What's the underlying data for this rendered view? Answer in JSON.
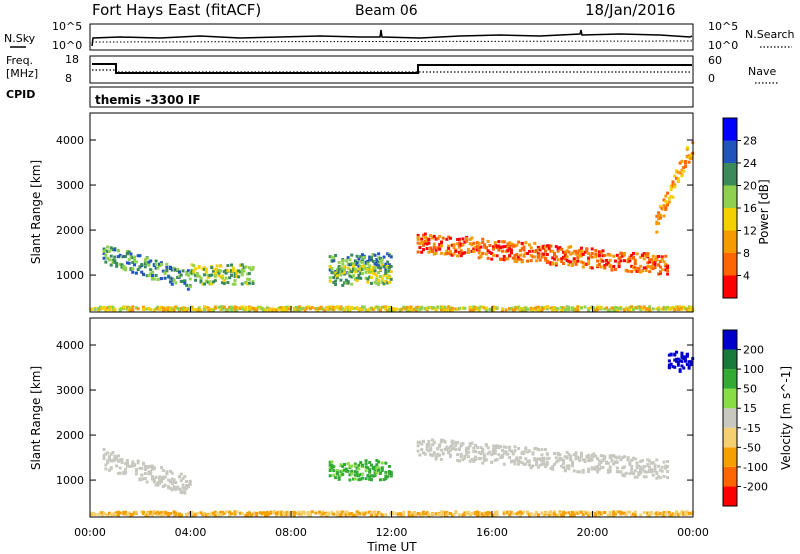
{
  "header": {
    "station": "Fort Hays East (fitACF)",
    "beam": "Beam 06",
    "date": "18/Jan/2016"
  },
  "strip": {
    "nsky_label": "N.Sky",
    "nsearch_label": "N.Search",
    "noise_top_tick": "10^5",
    "noise_bottom_tick": "10^0",
    "freq_label_line1": "Freq.",
    "freq_label_line2": "[MHz]",
    "freq_ticks": [
      "18",
      "8"
    ],
    "nave_label": "Nave",
    "nave_ticks": [
      "60",
      "0"
    ],
    "cpid_label": "CPID",
    "cpid_text": "themis -3300 IF"
  },
  "chart_data": [
    {
      "type": "heatmap",
      "name": "power",
      "ylabel": "Slant Range [km]",
      "yticks": [
        1000,
        2000,
        3000,
        4000
      ],
      "ylim": [
        180,
        4600
      ],
      "colorbar": {
        "label": "Power [dB]",
        "ticks": [
          "4",
          "8",
          "12",
          "16",
          "20",
          "24",
          "28"
        ],
        "colors": [
          "#0000ff",
          "#2255bb",
          "#3a8a5a",
          "#8fd14f",
          "#f3d100",
          "#f59a00",
          "#ff6600",
          "#ff0000"
        ]
      },
      "features": [
        {
          "t_start": 0.5,
          "t_end": 4.0,
          "range_start": 1500,
          "range_end": 900,
          "level": 2
        },
        {
          "t_start": 4.0,
          "t_end": 6.5,
          "range_start": 1050,
          "range_end": 1050,
          "level": 3
        },
        {
          "t_start": 9.5,
          "t_end": 12.0,
          "range_start": 1250,
          "range_end": 1300,
          "level": 2
        },
        {
          "t_start": 9.5,
          "t_end": 12.0,
          "range_start": 1000,
          "range_end": 1050,
          "level": 3
        },
        {
          "t_start": 13.0,
          "t_end": 23.0,
          "range_start": 1750,
          "range_end": 1250,
          "level": 6
        },
        {
          "t_start": 22.5,
          "t_end": 24.0,
          "range_start": 2200,
          "range_end": 4000,
          "level": 5
        },
        {
          "t_start": 0.0,
          "t_end": 24.0,
          "range_start": 250,
          "range_end": 250,
          "level": 4
        }
      ]
    },
    {
      "type": "heatmap",
      "name": "velocity",
      "xlabel": "Time UT",
      "ylabel": "Slant Range [km]",
      "yticks": [
        1000,
        2000,
        3000,
        4000
      ],
      "ylim": [
        180,
        4600
      ],
      "xlim": [
        0,
        24
      ],
      "xticks": [
        "00:00",
        "04:00",
        "08:00",
        "12:00",
        "16:00",
        "20:00",
        "00:00"
      ],
      "colorbar": {
        "label": "Velocity [m s^-1]",
        "ticks": [
          "200",
          "100",
          "50",
          "15",
          "-15",
          "-50",
          "-100",
          "-200"
        ],
        "colors": [
          "#0000cc",
          "#1a7a3a",
          "#33aa33",
          "#88dd44",
          "#c8c8c0",
          "#f4d070",
          "#f5a000",
          "#ff6600",
          "#ff0000"
        ]
      },
      "features": [
        {
          "t_start": 0.5,
          "t_end": 4.0,
          "range_start": 1500,
          "range_end": 900,
          "velocity": 0
        },
        {
          "t_start": 9.5,
          "t_end": 12.0,
          "range_start": 1250,
          "range_end": 1250,
          "velocity": 60
        },
        {
          "t_start": 13.0,
          "t_end": 23.0,
          "range_start": 1750,
          "range_end": 1250,
          "velocity": 0
        },
        {
          "t_start": 23.0,
          "t_end": 24.0,
          "range_start": 3700,
          "range_end": 3600,
          "velocity": 220
        },
        {
          "t_start": 0.0,
          "t_end": 24.0,
          "range_start": 250,
          "range_end": 250,
          "velocity": -50
        }
      ]
    }
  ]
}
